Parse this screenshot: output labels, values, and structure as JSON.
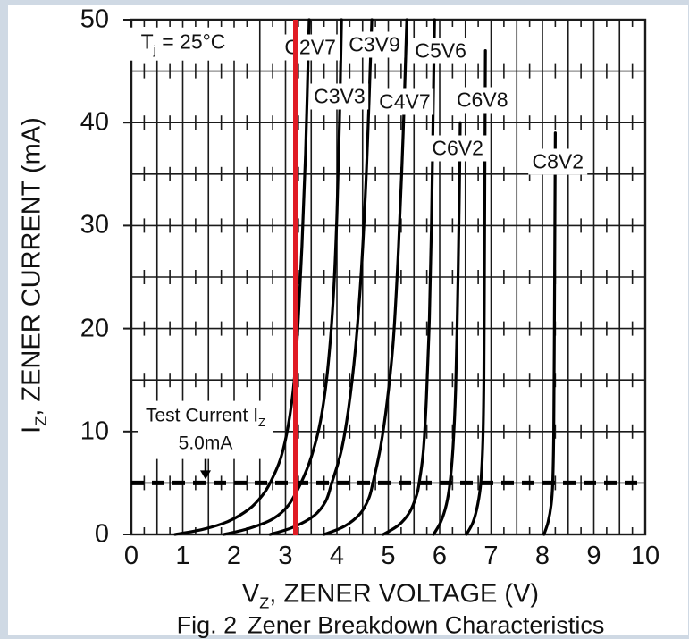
{
  "chart_data": {
    "type": "line",
    "figure_label": "Fig. 2",
    "title": "Zener Breakdown Characteristics",
    "condition": {
      "pre": "T",
      "sub": "j",
      "post": " = 25°C"
    },
    "xlabel": {
      "pre": "V",
      "sub": "Z",
      "post": ", ZENER VOLTAGE (V)"
    },
    "ylabel": {
      "pre": "I",
      "sub": "Z",
      "post": ", ZENER CURRENT (mA)"
    },
    "xlim": [
      0,
      10
    ],
    "ylim": [
      0,
      50
    ],
    "xticks": [
      "0",
      "1",
      "2",
      "3",
      "4",
      "5",
      "6",
      "7",
      "8",
      "9",
      "10"
    ],
    "yticks": [
      "0",
      "10",
      "20",
      "30",
      "40",
      "50"
    ],
    "x_major_grid_step": 0.5,
    "y_major_grid_step": 5,
    "x_minor_tick_step": 0.25,
    "grid": "on",
    "legend": "none",
    "series": [
      {
        "name": "C2V7",
        "vz_at_test_current": 2.7,
        "label_v": 3.48,
        "label_i": 47.3,
        "points": [
          [
            0.85,
            0
          ],
          [
            1.4,
            0.5
          ],
          [
            1.9,
            1.3
          ],
          [
            2.3,
            2.5
          ],
          [
            2.55,
            3.8
          ],
          [
            2.7,
            5
          ],
          [
            2.9,
            7.3
          ],
          [
            3.05,
            10.5
          ],
          [
            3.17,
            15
          ],
          [
            3.25,
            21
          ],
          [
            3.32,
            28
          ],
          [
            3.39,
            37
          ],
          [
            3.46,
            50
          ]
        ]
      },
      {
        "name": "C3V3",
        "vz_at_test_current": 3.3,
        "label_v": 4.05,
        "label_i": 42.5,
        "points": [
          [
            1.8,
            0
          ],
          [
            2.3,
            0.6
          ],
          [
            2.75,
            1.5
          ],
          [
            3.05,
            2.8
          ],
          [
            3.3,
            5
          ],
          [
            3.5,
            7.5
          ],
          [
            3.68,
            11
          ],
          [
            3.82,
            16
          ],
          [
            3.93,
            23
          ],
          [
            4.0,
            31
          ],
          [
            4.05,
            40
          ],
          [
            4.09,
            50
          ]
        ]
      },
      {
        "name": "C3V9",
        "vz_at_test_current": 3.9,
        "label_v": 4.73,
        "label_i": 47.6,
        "points": [
          [
            2.7,
            0
          ],
          [
            3.15,
            0.7
          ],
          [
            3.55,
            1.8
          ],
          [
            3.78,
            3.2
          ],
          [
            3.9,
            5
          ],
          [
            4.08,
            8
          ],
          [
            4.22,
            12
          ],
          [
            4.36,
            18
          ],
          [
            4.48,
            26
          ],
          [
            4.58,
            36
          ],
          [
            4.68,
            50
          ]
        ]
      },
      {
        "name": "C4V7",
        "vz_at_test_current": 4.7,
        "label_v": 5.32,
        "label_i": 42.0,
        "points": [
          [
            3.75,
            0
          ],
          [
            4.15,
            0.8
          ],
          [
            4.45,
            2
          ],
          [
            4.62,
            3.5
          ],
          [
            4.7,
            5
          ],
          [
            4.85,
            8.5
          ],
          [
            4.98,
            13
          ],
          [
            5.1,
            19
          ],
          [
            5.2,
            28
          ],
          [
            5.29,
            39
          ],
          [
            5.36,
            50
          ]
        ]
      },
      {
        "name": "C5V6",
        "vz_at_test_current": 5.6,
        "label_v": 6.02,
        "label_i": 47.0,
        "points": [
          [
            4.9,
            0
          ],
          [
            5.2,
            0.9
          ],
          [
            5.42,
            2.2
          ],
          [
            5.55,
            3.8
          ],
          [
            5.6,
            5
          ],
          [
            5.68,
            8
          ],
          [
            5.74,
            13
          ],
          [
            5.8,
            21
          ],
          [
            5.84,
            30
          ],
          [
            5.87,
            40
          ],
          [
            5.9,
            50
          ]
        ]
      },
      {
        "name": "C6V2",
        "vz_at_test_current": 6.2,
        "label_v": 6.35,
        "label_i": 37.5,
        "points": [
          [
            5.88,
            0
          ],
          [
            6.02,
            1.2
          ],
          [
            6.13,
            2.9
          ],
          [
            6.2,
            5
          ],
          [
            6.26,
            8.5
          ],
          [
            6.31,
            14
          ],
          [
            6.35,
            23
          ],
          [
            6.38,
            32
          ],
          [
            6.4,
            40
          ]
        ]
      },
      {
        "name": "C6V8",
        "vz_at_test_current": 6.8,
        "label_v": 6.83,
        "label_i": 42.2,
        "points": [
          [
            6.52,
            0
          ],
          [
            6.65,
            1.2
          ],
          [
            6.74,
            2.9
          ],
          [
            6.8,
            5
          ],
          [
            6.84,
            9
          ],
          [
            6.86,
            15
          ],
          [
            6.87,
            25
          ],
          [
            6.88,
            36
          ],
          [
            6.89,
            47
          ]
        ]
      },
      {
        "name": "C8V2",
        "vz_at_test_current": 8.2,
        "label_v": 8.3,
        "label_i": 36.2,
        "points": [
          [
            8.03,
            0
          ],
          [
            8.11,
            1.2
          ],
          [
            8.17,
            2.9
          ],
          [
            8.2,
            5
          ],
          [
            8.22,
            10
          ],
          [
            8.23,
            18
          ],
          [
            8.24,
            28
          ],
          [
            8.25,
            39
          ]
        ]
      }
    ],
    "test_current_annotation": {
      "line1_pre": "Test Current I",
      "line1_sub": "Z",
      "line2": "5.0mA",
      "i_ma": 5,
      "style": "dashed"
    },
    "marker_line": {
      "v": 3.2,
      "color": "#e01b24"
    },
    "colors": {
      "curve": "#000000",
      "grid": "#1a1a1a",
      "text": "#111111",
      "page_border": "#cfd9e4"
    }
  }
}
